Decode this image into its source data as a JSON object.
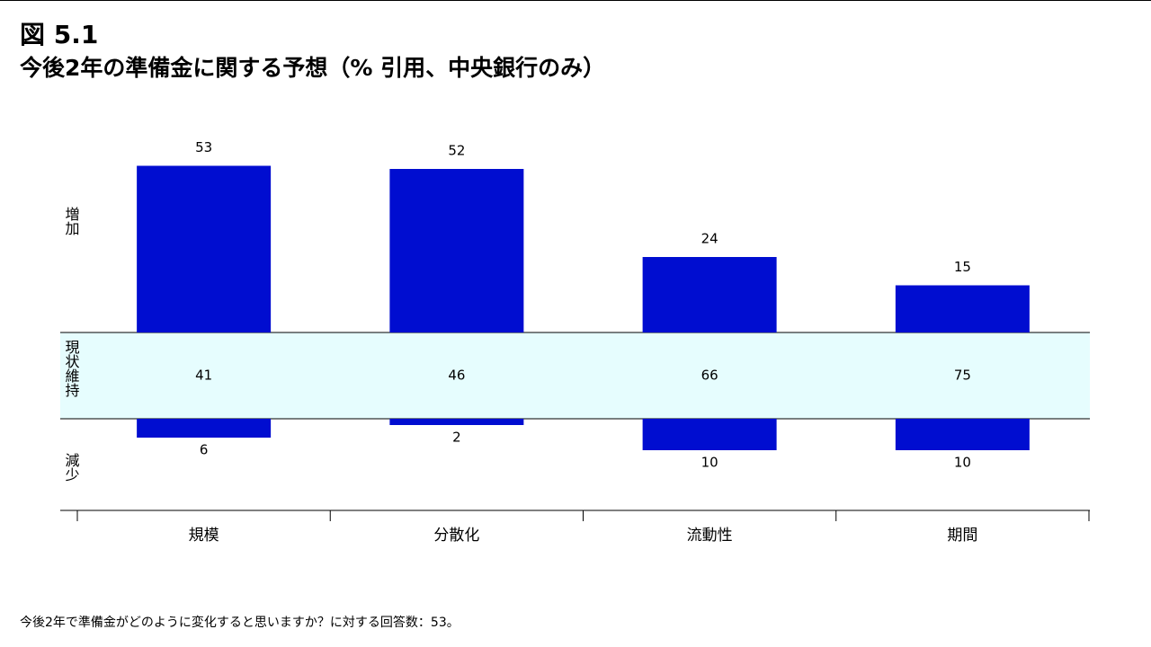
{
  "chart_data": {
    "type": "diverging-bar",
    "title": "図 5.1",
    "subtitle": "今後2年の準備金に関する予想（% 引用、中央銀行のみ）",
    "categories": [
      "規模",
      "分散化",
      "流動性",
      "期間"
    ],
    "series": [
      {
        "name": "増加",
        "color": "#000dd0",
        "values": [
          53,
          52,
          24,
          15
        ]
      },
      {
        "name": "現状維持",
        "color": "#e6fdfe",
        "values": [
          41,
          46,
          66,
          75
        ]
      },
      {
        "name": "減少",
        "color": "#000dd0",
        "values": [
          6,
          2,
          10,
          10
        ]
      }
    ],
    "footnote": "今後2年で準備金がどのように変化すると思いますか？に対する回答数：53。"
  }
}
